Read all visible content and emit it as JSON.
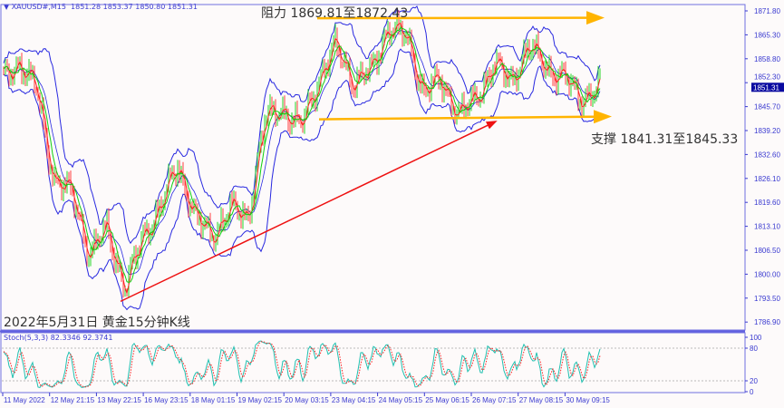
{
  "header": {
    "icon": "triangle-down-icon",
    "symbol": "XAUUSD#,M15",
    "ohlc": "1851.28 1853.37 1850.80 1851.31"
  },
  "chart_data": [
    {
      "type": "candlestick",
      "title": "2022年5月31日 黄金15分钟K线",
      "symbol": "XAUUSD#",
      "timeframe": "M15",
      "ylim": [
        1783.5,
        1874.5
      ],
      "y_ticks": [
        "1871.80",
        "1865.30",
        "1858.80",
        "1852.30",
        "1845.70",
        "1839.20",
        "1832.60",
        "1826.10",
        "1819.60",
        "1813.10",
        "1806.50",
        "1800.00",
        "1793.50",
        "1786.90"
      ],
      "x_ticks": [
        "11 May 2022",
        "12 May 21:15",
        "13 May 22:15",
        "16 May 23:15",
        "18 May 01:15",
        "19 May 02:15",
        "20 May 03:15",
        "23 May 04:15",
        "24 May 05:15",
        "25 May 06:15",
        "26 May 07:15",
        "27 May 08:15",
        "30 May 09:15"
      ],
      "current_price": "1851.31",
      "approx_close_path": [
        1853.7,
        1857.5,
        1850,
        1825,
        1822.5,
        1805,
        1812.6,
        1795.6,
        1810,
        1817.8,
        1830,
        1815.4,
        1810.4,
        1817.8,
        1815.4,
        1842.6,
        1845,
        1840,
        1852.5,
        1862.4,
        1852.5,
        1855,
        1867.3,
        1864.9,
        1850,
        1852.5,
        1843.8,
        1847.5,
        1857.5,
        1852.5,
        1862.4,
        1856.2,
        1853.7,
        1847.5,
        1851.3
      ],
      "indicators": [
        "Bollinger Bands",
        "Moving Averages"
      ],
      "colors": {
        "bull": "#00d000",
        "bear": "#ff2020",
        "bands": "#2828e0",
        "resistance": "#ffb400",
        "support": "#ffb400",
        "trendline": "#ee1111"
      },
      "annotations": {
        "resistance": {
          "text": "阻力 1869.81至1872.43",
          "price": 1869.8
        },
        "support": {
          "text": "支撑 1841.31至1845.33",
          "price": 1842.2
        },
        "trendline": {
          "from_price": 1792.5,
          "to_price": 1841.5
        }
      }
    },
    {
      "type": "line",
      "indicator_label": "Stoch(5,3,3) 82.3346 92.3741",
      "ylim": [
        0,
        100
      ],
      "y_ticks": [
        "100",
        "80",
        "20",
        "0"
      ],
      "levels": [
        80,
        20
      ],
      "colors": {
        "main": "#20c0b0",
        "signal": "#ff2020"
      }
    }
  ]
}
